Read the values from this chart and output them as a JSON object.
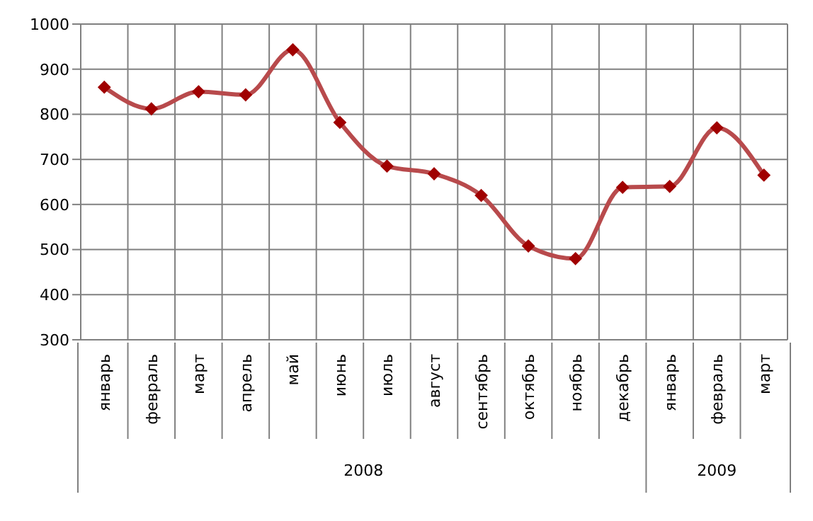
{
  "chart_data": {
    "type": "line",
    "categories": [
      "январь",
      "февраль",
      "март",
      "апрель",
      "май",
      "июнь",
      "июль",
      "август",
      "сентябрь",
      "октябрь",
      "ноябрь",
      "декабрь",
      "январь",
      "февраль",
      "март"
    ],
    "series": [
      {
        "color": "#b84a4c",
        "values": [
          860,
          812,
          850,
          843,
          943,
          782,
          685,
          668,
          620,
          508,
          480,
          638,
          640,
          770,
          665
        ]
      }
    ],
    "ylim": [
      300,
      1000
    ],
    "yticks": [
      300,
      400,
      500,
      600,
      700,
      800,
      900,
      1000
    ],
    "annotations": [
      "2008",
      "2009"
    ],
    "grid": true,
    "marker": "diamond",
    "legend": false
  }
}
